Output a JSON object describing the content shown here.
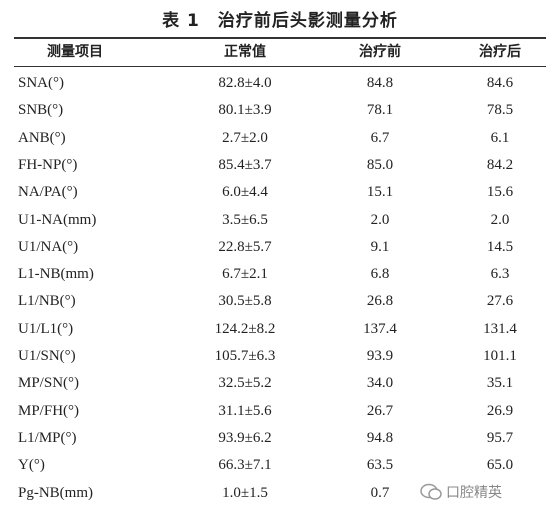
{
  "title": "表 1　治疗前后头影测量分析",
  "table": {
    "header": [
      "测量项目",
      "正常值",
      "治疗前",
      "治疗后"
    ],
    "rows": [
      [
        "SNA(°)",
        "82.8±4.0",
        "84.8",
        "84.6"
      ],
      [
        "SNB(°)",
        "80.1±3.9",
        "78.1",
        "78.5"
      ],
      [
        "ANB(°)",
        "2.7±2.0",
        "6.7",
        "6.1"
      ],
      [
        "FH-NP(°)",
        "85.4±3.7",
        "85.0",
        "84.2"
      ],
      [
        "NA/PA(°)",
        "6.0±4.4",
        "15.1",
        "15.6"
      ],
      [
        "U1-NA(mm)",
        "3.5±6.5",
        "2.0",
        "2.0"
      ],
      [
        "U1/NA(°)",
        "22.8±5.7",
        "9.1",
        "14.5"
      ],
      [
        "L1-NB(mm)",
        "6.7±2.1",
        "6.8",
        "6.3"
      ],
      [
        "L1/NB(°)",
        "30.5±5.8",
        "26.8",
        "27.6"
      ],
      [
        "U1/L1(°)",
        "124.2±8.2",
        "137.4",
        "131.4"
      ],
      [
        "U1/SN(°)",
        "105.7±6.3",
        "93.9",
        "101.1"
      ],
      [
        "MP/SN(°)",
        "32.5±5.2",
        "34.0",
        "35.1"
      ],
      [
        "MP/FH(°)",
        "31.1±5.6",
        "26.7",
        "26.9"
      ],
      [
        "L1/MP(°)",
        "93.9±6.2",
        "94.8",
        "95.7"
      ],
      [
        "Y(°)",
        "66.3±7.1",
        "63.5",
        "65.0"
      ],
      [
        "Pg-NB(mm)",
        "1.0±1.5",
        "0.7",
        ""
      ]
    ]
  },
  "watermark": "口腔精英"
}
